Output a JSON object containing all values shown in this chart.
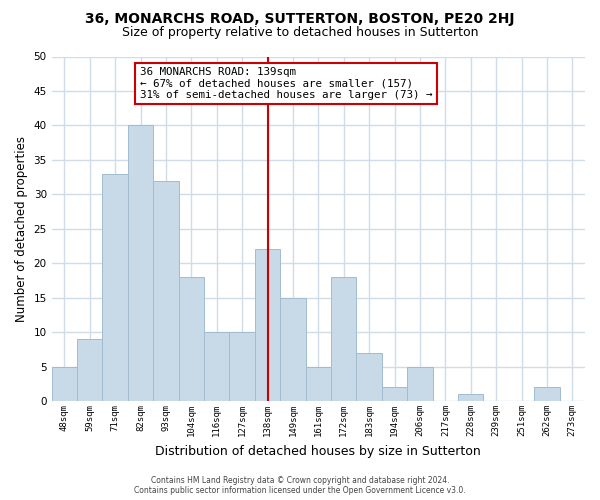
{
  "title": "36, MONARCHS ROAD, SUTTERTON, BOSTON, PE20 2HJ",
  "subtitle": "Size of property relative to detached houses in Sutterton",
  "xlabel": "Distribution of detached houses by size in Sutterton",
  "ylabel": "Number of detached properties",
  "bar_labels": [
    "48sqm",
    "59sqm",
    "71sqm",
    "82sqm",
    "93sqm",
    "104sqm",
    "116sqm",
    "127sqm",
    "138sqm",
    "149sqm",
    "161sqm",
    "172sqm",
    "183sqm",
    "194sqm",
    "206sqm",
    "217sqm",
    "228sqm",
    "239sqm",
    "251sqm",
    "262sqm",
    "273sqm"
  ],
  "bar_values": [
    5,
    9,
    33,
    40,
    32,
    18,
    10,
    10,
    22,
    15,
    5,
    18,
    7,
    2,
    5,
    0,
    1,
    0,
    0,
    2,
    0
  ],
  "bar_color": "#c8d9e8",
  "bar_edge_color": "#a0bcd0",
  "vline_index": 8,
  "vline_color": "#cc0000",
  "annotation_title": "36 MONARCHS ROAD: 139sqm",
  "annotation_line1": "← 67% of detached houses are smaller (157)",
  "annotation_line2": "31% of semi-detached houses are larger (73) →",
  "annotation_box_edge": "#cc0000",
  "ylim": [
    0,
    50
  ],
  "yticks": [
    0,
    5,
    10,
    15,
    20,
    25,
    30,
    35,
    40,
    45,
    50
  ],
  "bg_color": "#ffffff",
  "grid_color": "#d0dce8",
  "title_fontsize": 10,
  "subtitle_fontsize": 9,
  "ylabel_fontsize": 8.5,
  "xlabel_fontsize": 9,
  "footer_line1": "Contains HM Land Registry data © Crown copyright and database right 2024.",
  "footer_line2": "Contains public sector information licensed under the Open Government Licence v3.0."
}
